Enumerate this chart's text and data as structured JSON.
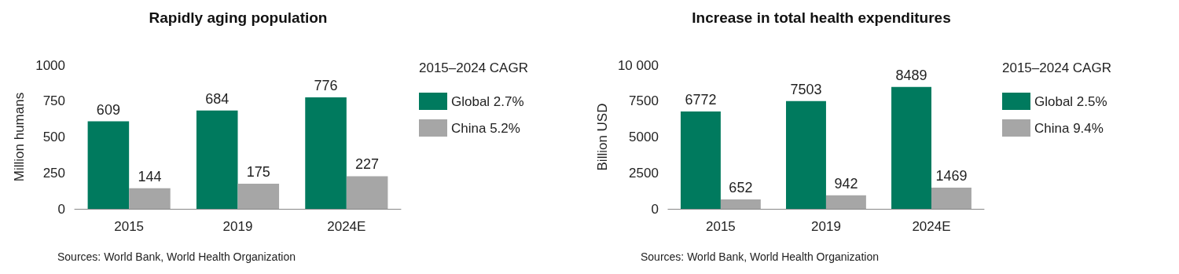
{
  "chart_data": [
    {
      "type": "bar",
      "title": "Rapidly aging population",
      "ylabel": "Million humans",
      "legend_title": "2015–2024 CAGR",
      "categories": [
        "2015",
        "2019",
        "2024E"
      ],
      "series": [
        {
          "name": "Global 2.7%",
          "color": "#007a5e",
          "values": [
            609,
            684,
            776
          ]
        },
        {
          "name": "China 5.2%",
          "color": "#a6a6a6",
          "values": [
            144,
            175,
            227
          ]
        }
      ],
      "ylim": [
        0,
        1000
      ],
      "yticks": [
        0,
        250,
        500,
        750,
        1000
      ],
      "grid": false,
      "legend": "right",
      "data_labels": true,
      "annotations": [
        "Sources: World Bank, World Health Organization"
      ]
    },
    {
      "type": "bar",
      "title": "Increase in total health expenditures",
      "ylabel": "Billion USD",
      "legend_title": "2015–2024 CAGR",
      "categories": [
        "2015",
        "2019",
        "2024E"
      ],
      "series": [
        {
          "name": "Global 2.5%",
          "color": "#007a5e",
          "values": [
            6772,
            7503,
            8489
          ]
        },
        {
          "name": "China 9.4%",
          "color": "#a6a6a6",
          "values": [
            652,
            942,
            1469
          ]
        }
      ],
      "ylim": [
        0,
        10000
      ],
      "yticks": [
        0,
        2500,
        5000,
        7500,
        {
          "value": 10000,
          "label": "10 000"
        }
      ],
      "grid": false,
      "legend": "right",
      "data_labels": true,
      "annotations": [
        "Sources: World Bank, World Health Organization"
      ]
    }
  ]
}
